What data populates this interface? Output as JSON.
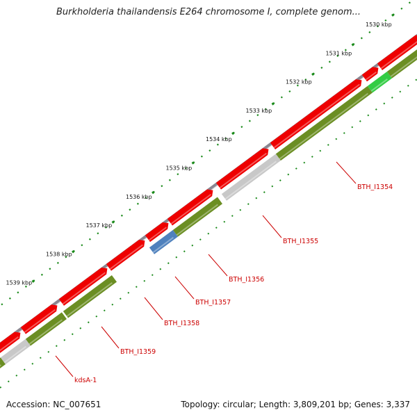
{
  "title": "Burkholderia thailandensis E264 chromosome I, complete genom...",
  "footer": {
    "accession": "Accession: NC_007651",
    "topology": "Topology: circular; Length: 3,809,201 bp; Genes: 3,337"
  },
  "colors": {
    "backbone": "#8a8690",
    "forward_gene": "#ee0000",
    "reverse_gene": "#6b8e23",
    "rna_gene": "#c8c8c8",
    "pseudo_gene": "#4f81bd",
    "highlight_gene": "#33cc44",
    "tick": "#1a8a1a",
    "label_line": "#cc0000"
  },
  "scale": {
    "ticks": [
      {
        "kbp": 1530,
        "label": "1530 kbp"
      },
      {
        "kbp": 1531,
        "label": "1531 kbp"
      },
      {
        "kbp": 1532,
        "label": "1532 kbp"
      },
      {
        "kbp": 1533,
        "label": "1533 kbp"
      },
      {
        "kbp": 1534,
        "label": "1534 kbp"
      },
      {
        "kbp": 1535,
        "label": "1535 kbp"
      },
      {
        "kbp": 1536,
        "label": "1536 kbp"
      },
      {
        "kbp": 1537,
        "label": "1537 kbp"
      },
      {
        "kbp": 1538,
        "label": "1538 kbp"
      },
      {
        "kbp": 1539,
        "label": "1539 kbp"
      }
    ]
  },
  "gene_labels": [
    {
      "name": "BTH_I1354"
    },
    {
      "name": "BTH_I1355"
    },
    {
      "name": "BTH_I1356"
    },
    {
      "name": "BTH_I1357"
    },
    {
      "name": "BTH_I1358"
    },
    {
      "name": "BTH_I1359"
    },
    {
      "name": "kdsA-1"
    }
  ]
}
